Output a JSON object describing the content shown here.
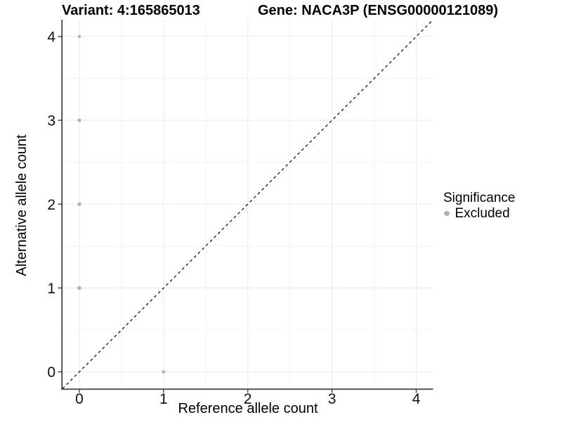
{
  "chart_data": {
    "type": "scatter",
    "titles": {
      "variant": "Variant: 4:165865013",
      "gene": "Gene: NACA3P (ENSG00000121089)"
    },
    "xlabel": "Reference allele count",
    "ylabel": "Alternative allele count",
    "xlim": [
      -0.2,
      4.2
    ],
    "ylim": [
      -0.2,
      4.2
    ],
    "x_ticks": [
      0,
      1,
      2,
      3,
      4
    ],
    "y_ticks": [
      0,
      1,
      2,
      3,
      4
    ],
    "x_minor": [
      0.5,
      1.5,
      2.5,
      3.5
    ],
    "y_minor": [
      0.5,
      1.5,
      2.5,
      3.5
    ],
    "grid": true,
    "identity_line": {
      "style": "dashed",
      "from": [
        -0.2,
        -0.2
      ],
      "to": [
        4.2,
        4.2
      ],
      "color": "#000000"
    },
    "series": [
      {
        "name": "Excluded",
        "color": "#b2b2b2",
        "points": [
          {
            "x": 0,
            "y": 4,
            "r": 2.2
          },
          {
            "x": 0,
            "y": 3,
            "r": 2.5
          },
          {
            "x": 0,
            "y": 2,
            "r": 2.7
          },
          {
            "x": 0,
            "y": 1,
            "r": 2.8
          },
          {
            "x": 1,
            "y": 0,
            "r": 2.3
          }
        ]
      }
    ],
    "legend": {
      "position": "right",
      "title": "Significance",
      "items": [
        {
          "label": "Excluded",
          "color": "#b2b2b2"
        }
      ]
    }
  },
  "colors": {
    "background": "#ffffff",
    "grid_major": "#ebebeb",
    "grid_minor": "#f3f3f3",
    "axis": "#333333",
    "tick_text": "#111111",
    "point": "#b2b2b2",
    "identity": "#000000"
  }
}
